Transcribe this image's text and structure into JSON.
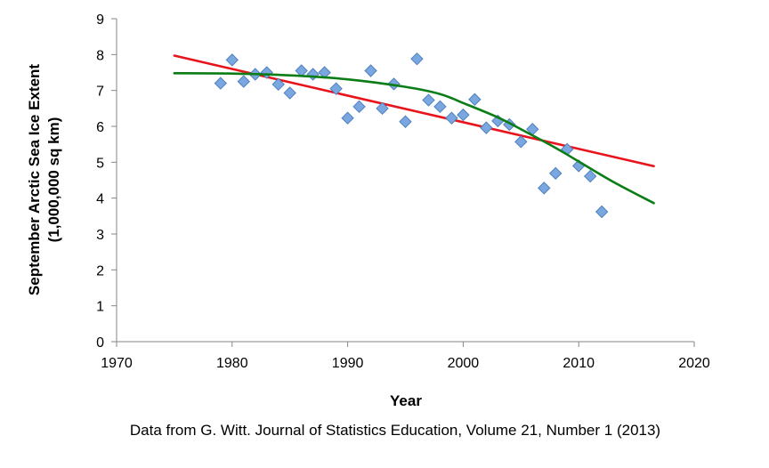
{
  "chart_data": {
    "type": "scatter",
    "xlabel": "Year",
    "ylabel_line1": "September Arctic Sea Ice Extent",
    "ylabel_line2": "(1,000,000 sq km)",
    "xlim": [
      1970,
      2020
    ],
    "ylim": [
      0,
      9
    ],
    "xticks": [
      "1970",
      "1980",
      "1990",
      "2000",
      "2010",
      "2020"
    ],
    "yticks": [
      "0",
      "1",
      "2",
      "3",
      "4",
      "5",
      "6",
      "7",
      "8",
      "9"
    ],
    "grid": false,
    "caption": "Data from G. Witt. Journal of Statistics Education, Volume 21, Number 1 (2013)",
    "series": [
      {
        "kind": "points",
        "color": "#7BA7E1",
        "x": [
          1979,
          1980,
          1981,
          1982,
          1983,
          1984,
          1985,
          1986,
          1987,
          1988,
          1989,
          1990,
          1991,
          1992,
          1993,
          1994,
          1995,
          1996,
          1997,
          1998,
          1999,
          2000,
          2001,
          2002,
          2003,
          2004,
          2005,
          2006,
          2007,
          2008,
          2009,
          2010,
          2011,
          2012
        ],
        "y": [
          7.2,
          7.85,
          7.25,
          7.45,
          7.5,
          7.17,
          6.93,
          7.55,
          7.45,
          7.5,
          7.05,
          6.23,
          6.55,
          7.55,
          6.5,
          7.18,
          6.13,
          7.88,
          6.73,
          6.55,
          6.23,
          6.32,
          6.75,
          5.96,
          6.15,
          6.05,
          5.57,
          5.92,
          4.28,
          4.69,
          5.36,
          4.9,
          4.61,
          3.62
        ]
      },
      {
        "kind": "linear-fit",
        "color": "#E8141C",
        "x": [
          1975,
          2016.5
        ],
        "y": [
          7.97,
          4.89
        ]
      },
      {
        "kind": "smooth-fit",
        "color": "#0B7D16",
        "x": [
          1975,
          1980,
          1985,
          1990,
          1995,
          1998,
          2000,
          2003,
          2005,
          2008,
          2010,
          2013,
          2016.5
        ],
        "y": [
          7.48,
          7.47,
          7.42,
          7.31,
          7.1,
          6.9,
          6.65,
          6.25,
          5.92,
          5.4,
          5.02,
          4.45,
          3.86
        ]
      }
    ]
  }
}
